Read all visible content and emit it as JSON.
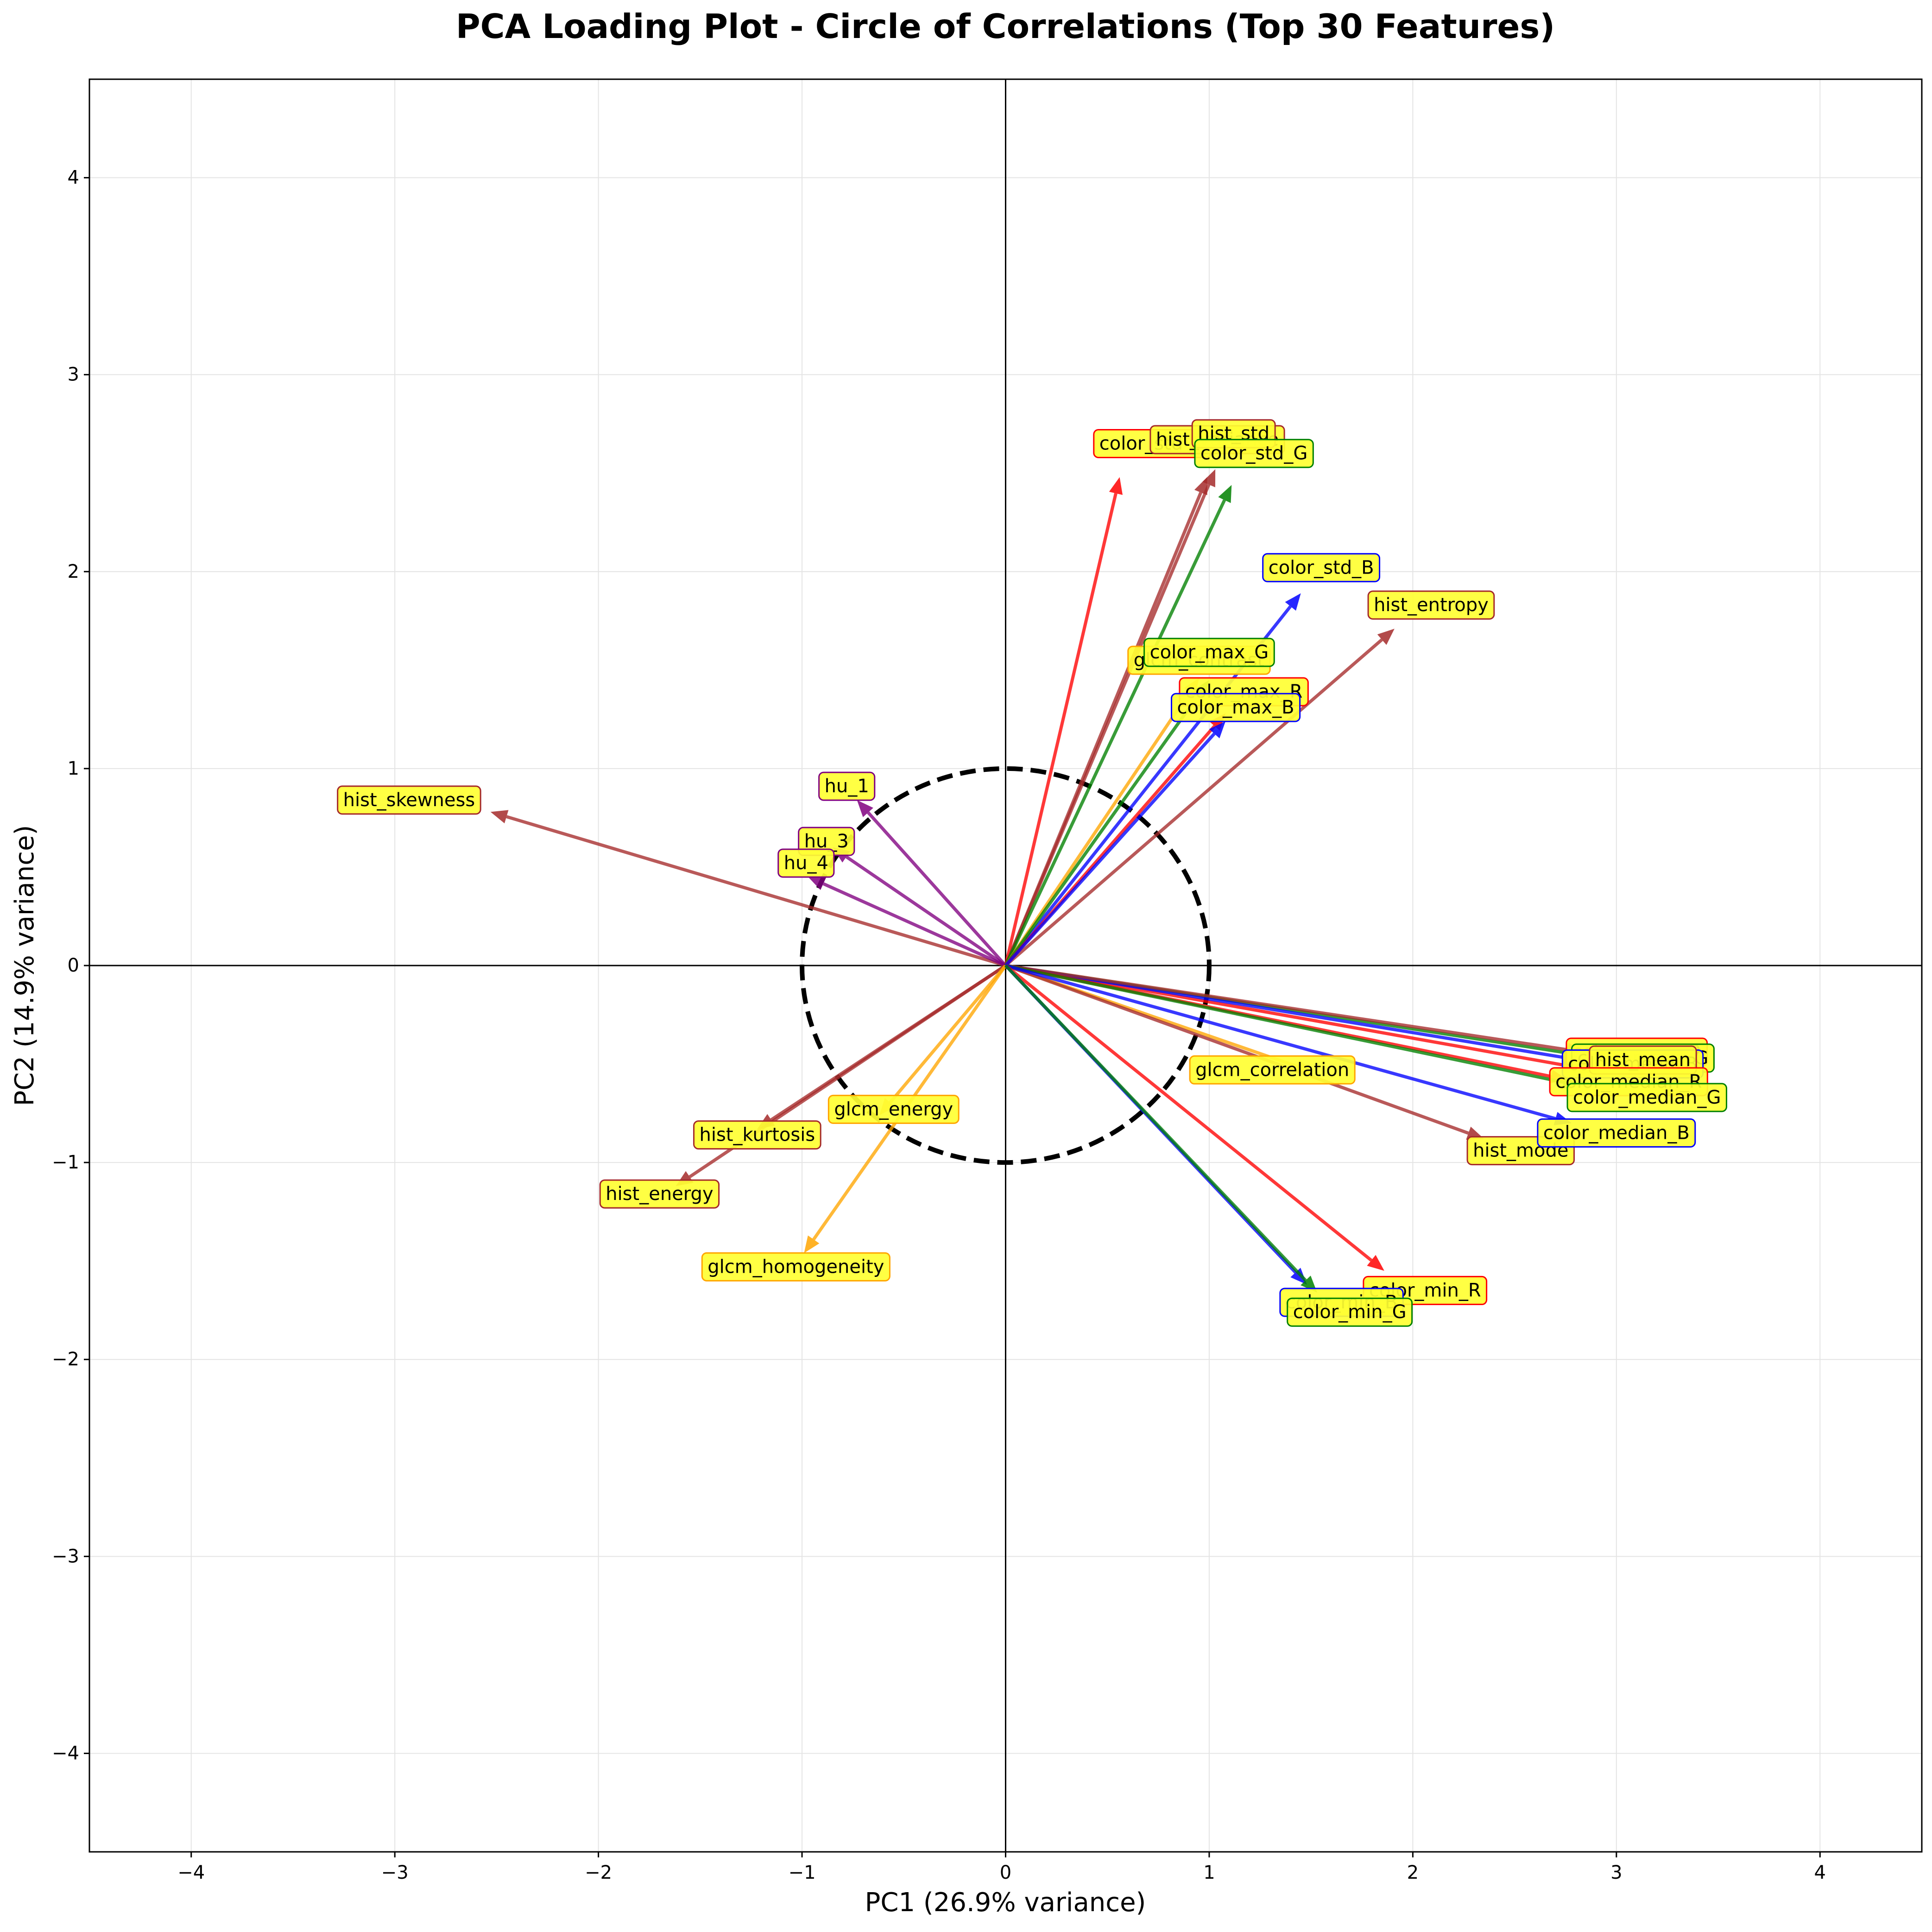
{
  "chart_data": {
    "type": "scatter",
    "subtype": "pca-loading-biplot",
    "title": "PCA Loading Plot - Circle of Correlations (Top 30 Features)",
    "xlabel": "PC1 (26.9% variance)",
    "ylabel": "PC2 (14.9% variance)",
    "xlim": [
      -4.5,
      4.5
    ],
    "ylim": [
      -4.5,
      4.5
    ],
    "xticks": [
      -4,
      -3,
      -2,
      -1,
      0,
      1,
      2,
      3,
      4
    ],
    "yticks": [
      -4,
      -3,
      -2,
      -1,
      0,
      1,
      2,
      3,
      4
    ],
    "xtick_labels": [
      "−4",
      "−3",
      "−2",
      "−1",
      "0",
      "1",
      "2",
      "3",
      "4"
    ],
    "ytick_labels": [
      "−4",
      "−3",
      "−2",
      "−1",
      "0",
      "1",
      "2",
      "3",
      "4"
    ],
    "grid": true,
    "unit_circle_radius": 1,
    "label_fill": "#ffff33",
    "vectors": [
      {
        "name": "hist_skewness",
        "x": -2.53,
        "y": 0.78,
        "lx": -2.93,
        "ly": 0.84,
        "color": "#a52a2a"
      },
      {
        "name": "hu_1",
        "x": -0.73,
        "y": 0.84,
        "lx": -0.78,
        "ly": 0.91,
        "color": "#800080"
      },
      {
        "name": "hu_3",
        "x": -0.85,
        "y": 0.6,
        "lx": -0.88,
        "ly": 0.63,
        "color": "#800080"
      },
      {
        "name": "hu_4",
        "x": -0.97,
        "y": 0.45,
        "lx": -0.98,
        "ly": 0.52,
        "color": "#800080"
      },
      {
        "name": "hist_kurtosis",
        "x": -1.22,
        "y": -0.83,
        "lx": -1.22,
        "ly": -0.86,
        "color": "#a52a2a"
      },
      {
        "name": "hist_energy",
        "x": -1.62,
        "y": -1.12,
        "lx": -1.7,
        "ly": -1.16,
        "color": "#a52a2a"
      },
      {
        "name": "glcm_energy",
        "x": -0.62,
        "y": -0.76,
        "lx": -0.55,
        "ly": -0.73,
        "color": "#ffa500"
      },
      {
        "name": "glcm_homogeneity",
        "x": -0.99,
        "y": -1.46,
        "lx": -1.03,
        "ly": -1.53,
        "color": "#ffa500"
      },
      {
        "name": "color_std_R",
        "x": 0.56,
        "y": 2.48,
        "lx": 0.72,
        "ly": 2.65,
        "color": "#ff0000"
      },
      {
        "name": "hist_variance",
        "x": 0.99,
        "y": 2.48,
        "lx": 1.04,
        "ly": 2.67,
        "color": "#a52a2a"
      },
      {
        "name": "hist_std",
        "x": 1.03,
        "y": 2.52,
        "lx": 1.12,
        "ly": 2.7,
        "color": "#a52a2a"
      },
      {
        "name": "color_std_G",
        "x": 1.11,
        "y": 2.44,
        "lx": 1.22,
        "ly": 2.6,
        "color": "#008000"
      },
      {
        "name": "color_std_B",
        "x": 1.45,
        "y": 1.89,
        "lx": 1.55,
        "ly": 2.02,
        "color": "#0000ff"
      },
      {
        "name": "hist_entropy",
        "x": 1.91,
        "y": 1.71,
        "lx": 2.09,
        "ly": 1.83,
        "color": "#a52a2a"
      },
      {
        "name": "glcm_contrast",
        "x": 0.95,
        "y": 1.46,
        "lx": 0.95,
        "ly": 1.55,
        "color": "#ffa500"
      },
      {
        "name": "color_max_G",
        "x": 1.0,
        "y": 1.45,
        "lx": 1.0,
        "ly": 1.59,
        "color": "#008000"
      },
      {
        "name": "color_max_R",
        "x": 1.08,
        "y": 1.28,
        "lx": 1.17,
        "ly": 1.39,
        "color": "#ff0000"
      },
      {
        "name": "color_max_B",
        "x": 1.08,
        "y": 1.24,
        "lx": 1.13,
        "ly": 1.31,
        "color": "#0000ff"
      },
      {
        "name": "glcm_correlation",
        "x": 1.51,
        "y": -0.54,
        "lx": 1.31,
        "ly": -0.53,
        "color": "#ffa500"
      },
      {
        "name": "hist_mode",
        "x": 2.35,
        "y": -0.88,
        "lx": 2.53,
        "ly": -0.94,
        "color": "#a52a2a"
      },
      {
        "name": "color_mean_R",
        "x": 2.82,
        "y": -0.52,
        "lx": 3.1,
        "ly": -0.44,
        "color": "#ff0000"
      },
      {
        "name": "color_mean_G",
        "x": 2.86,
        "y": -0.46,
        "lx": 3.13,
        "ly": -0.47,
        "color": "#008000"
      },
      {
        "name": "color_mean_B",
        "x": 2.82,
        "y": -0.48,
        "lx": 3.08,
        "ly": -0.5,
        "color": "#0000ff"
      },
      {
        "name": "hist_mean",
        "x": 2.84,
        "y": -0.44,
        "lx": 3.13,
        "ly": -0.48,
        "color": "#a52a2a"
      },
      {
        "name": "color_median_R",
        "x": 2.76,
        "y": -0.58,
        "lx": 3.06,
        "ly": -0.59,
        "color": "#ff0000"
      },
      {
        "name": "color_median_G",
        "x": 2.82,
        "y": -0.61,
        "lx": 3.15,
        "ly": -0.67,
        "color": "#008000"
      },
      {
        "name": "color_median_B",
        "x": 2.78,
        "y": -0.8,
        "lx": 3.0,
        "ly": -0.85,
        "color": "#0000ff"
      },
      {
        "name": "color_min_R",
        "x": 1.86,
        "y": -1.55,
        "lx": 2.06,
        "ly": -1.65,
        "color": "#ff0000"
      },
      {
        "name": "color_min_B",
        "x": 1.48,
        "y": -1.62,
        "lx": 1.65,
        "ly": -1.71,
        "color": "#0000ff"
      },
      {
        "name": "color_min_G",
        "x": 1.53,
        "y": -1.66,
        "lx": 1.69,
        "ly": -1.76,
        "color": "#008000"
      }
    ]
  }
}
